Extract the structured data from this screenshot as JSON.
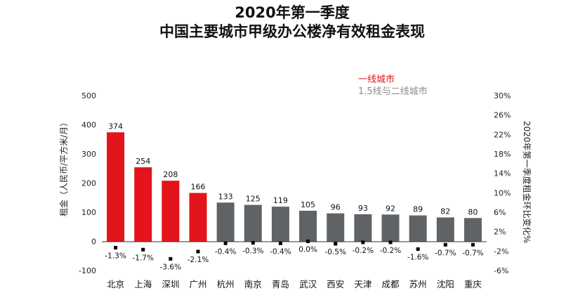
{
  "chart_data": {
    "type": "bar",
    "title": "2020年第一季度",
    "subtitle": "中国主要城市甲级办公楼净有效租金表现",
    "ylabel": "租金（人民币/平方米/月）",
    "y2label": "2020年第一季度租金环比变化%",
    "ylim": [
      -100,
      500
    ],
    "y2lim": [
      -6,
      30
    ],
    "yticks": [
      "-100",
      "0",
      "100",
      "200",
      "300",
      "400",
      "500"
    ],
    "y2ticks": [
      "-6%",
      "-2%",
      "2%",
      "6%",
      "10%",
      "14%",
      "18%",
      "22%",
      "26%",
      "30%"
    ],
    "grid": false,
    "legend_position": "top-right",
    "categories": [
      "北京",
      "上海",
      "深圳",
      "广州",
      "杭州",
      "南京",
      "青岛",
      "武汉",
      "西安",
      "天津",
      "成都",
      "苏州",
      "沈阳",
      "重庆"
    ],
    "series": [
      {
        "name": "一线城市",
        "color": "#e3141b",
        "values": [
          374,
          254,
          208,
          166,
          null,
          null,
          null,
          null,
          null,
          null,
          null,
          null,
          null,
          null
        ]
      },
      {
        "name": "1.5线与二线城市",
        "color": "#5f6366",
        "values": [
          null,
          null,
          null,
          null,
          133,
          125,
          119,
          105,
          96,
          93,
          92,
          89,
          82,
          80
        ]
      }
    ],
    "qoq_change_pct": [
      -1.3,
      -1.7,
      -3.6,
      -2.1,
      -0.4,
      -0.3,
      -0.4,
      0.0,
      -0.5,
      -0.2,
      -0.2,
      -1.6,
      -0.7,
      -0.7
    ],
    "qoq_change_labels": [
      "-1.3%",
      "-1.7%",
      "-3.6%",
      "-2.1%",
      "-0.4%",
      "-0.3%",
      "-0.4%",
      "0.0%",
      "-0.5%",
      "-0.2%",
      "-0.2%",
      "-1.6%",
      "-0.7%",
      "-0.7%"
    ],
    "legend_colors": [
      "#e3141b",
      "#8c8c8c"
    ]
  }
}
